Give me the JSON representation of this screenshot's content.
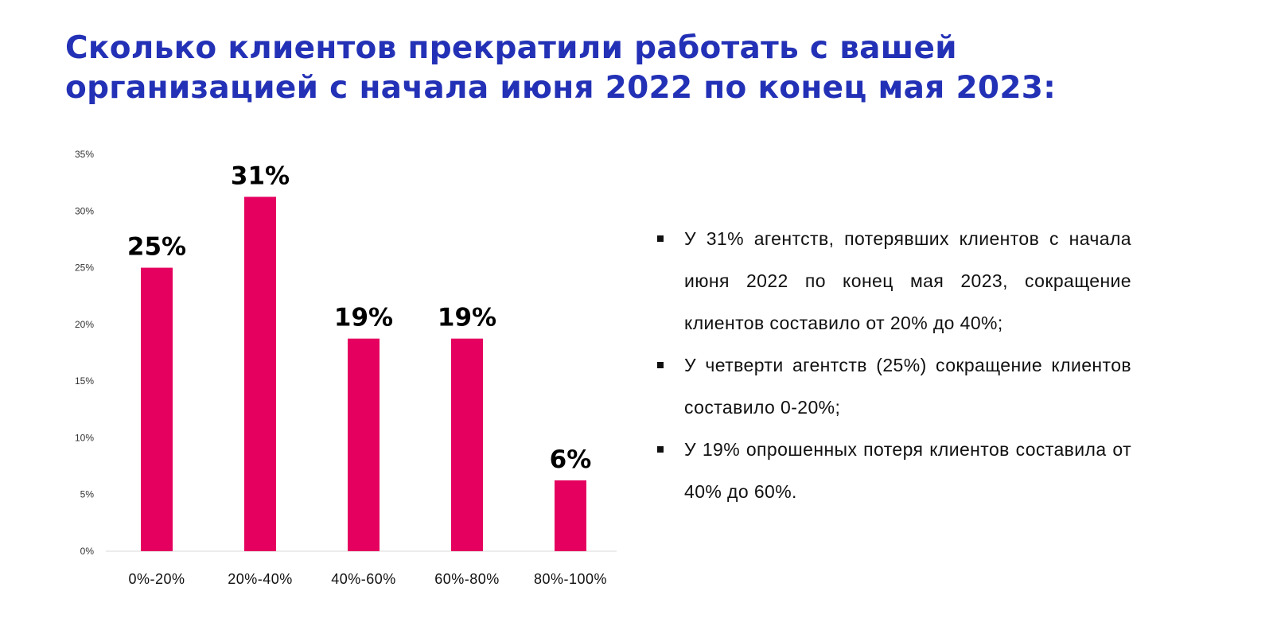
{
  "title": {
    "line1": "Сколько клиентов прекратили работать с вашей",
    "line2": "организацией с начала июня 2022 по конец мая 2023:"
  },
  "colors": {
    "title": "#2331B6",
    "bar": "#E5005F"
  },
  "chart_data": {
    "type": "bar",
    "title": "Сколько клиентов прекратили работать с вашей организацией с начала июня 2022 по конец мая 2023:",
    "categories": [
      "0%-20%",
      "20%-40%",
      "40%-60%",
      "60%-80%",
      "80%-100%"
    ],
    "values": [
      25,
      31.25,
      18.75,
      18.75,
      6.25
    ],
    "data_labels": [
      "25%",
      "31%",
      "19%",
      "19%",
      "6%"
    ],
    "yticks": [
      "0%",
      "5%",
      "10%",
      "15%",
      "20%",
      "25%",
      "30%",
      "35%"
    ],
    "ylim": [
      0,
      35
    ],
    "xlabel": "",
    "ylabel": "",
    "grid": false
  },
  "bullets": [
    "У 31% агентств, потерявших клиентов с начала июня 2022 по конец мая 2023, сокращение клиентов составило от 20% до 40%;",
    "У четверти агентств (25%) сокращение клиентов составило 0-20%;",
    "У 19% опрошенных потеря клиентов составила от 40% до 60%."
  ]
}
